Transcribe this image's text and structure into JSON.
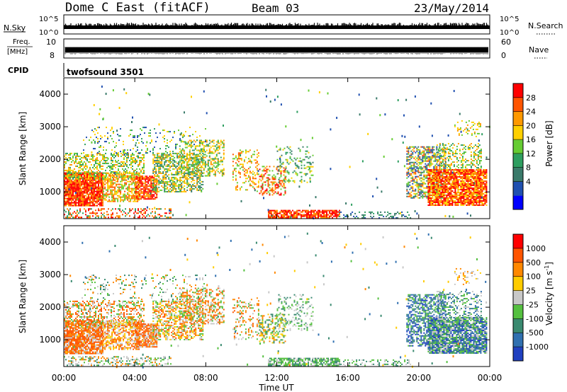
{
  "header": {
    "station": "Dome C East (fitACF)",
    "beam": "Beam 03",
    "date": "23/May/2014"
  },
  "strips": {
    "nsky": {
      "label": "N.Sky",
      "ticks": [
        "10^5",
        "10^0"
      ]
    },
    "nsearch": {
      "label": "N.Search",
      "ticks": [
        "10^5",
        "10^0"
      ]
    },
    "freq": {
      "label_line1": "Freq.",
      "label_line2": "[MHz]",
      "ticks": [
        "10",
        "8"
      ]
    },
    "nave": {
      "label": "Nave",
      "ticks": [
        "60",
        "0"
      ]
    },
    "cpid": {
      "label": "CPID",
      "value": "twofsound 3501"
    }
  },
  "chart_data": [
    {
      "type": "heatmap",
      "name": "power",
      "xlabel": "",
      "ylabel": "Slant Range [km]",
      "x_ticks": [
        "00:00",
        "04:00",
        "08:00",
        "12:00",
        "16:00",
        "20:00",
        "00:00"
      ],
      "xlim_hours": [
        0,
        24
      ],
      "ylim_km": [
        180,
        4500
      ],
      "y_ticks": [
        "1000",
        "2000",
        "3000",
        "4000"
      ],
      "colorbar": {
        "label": "Power [dB]",
        "ticks": [
          "28",
          "24",
          "20",
          "16",
          "12",
          "8",
          "4"
        ],
        "colors": [
          "#0000ff",
          "#2050b0",
          "#3a7a6a",
          "#2e9e60",
          "#66cc33",
          "#ffd000",
          "#ff9900",
          "#ff5500",
          "#ff0000"
        ]
      }
    },
    {
      "type": "heatmap",
      "name": "velocity",
      "xlabel": "Time UT",
      "ylabel": "Slant Range [km]",
      "x_ticks": [
        "00:00",
        "04:00",
        "08:00",
        "12:00",
        "16:00",
        "20:00",
        "00:00"
      ],
      "xlim_hours": [
        0,
        24
      ],
      "ylim_km": [
        180,
        4500
      ],
      "y_ticks": [
        "1000",
        "2000",
        "3000",
        "4000"
      ],
      "colorbar": {
        "label": "Velocity [m s",
        "label_sup": "-1",
        "label_end": "]",
        "ticks": [
          "1000",
          "500",
          "100",
          "25",
          "-25",
          "-100",
          "-500",
          "-1000"
        ],
        "colors": [
          "#2040c0",
          "#3070b0",
          "#3a8a70",
          "#55c040",
          "#c8c8c8",
          "#ffcc00",
          "#ff8800",
          "#ff5500",
          "#ff0000"
        ]
      }
    }
  ]
}
